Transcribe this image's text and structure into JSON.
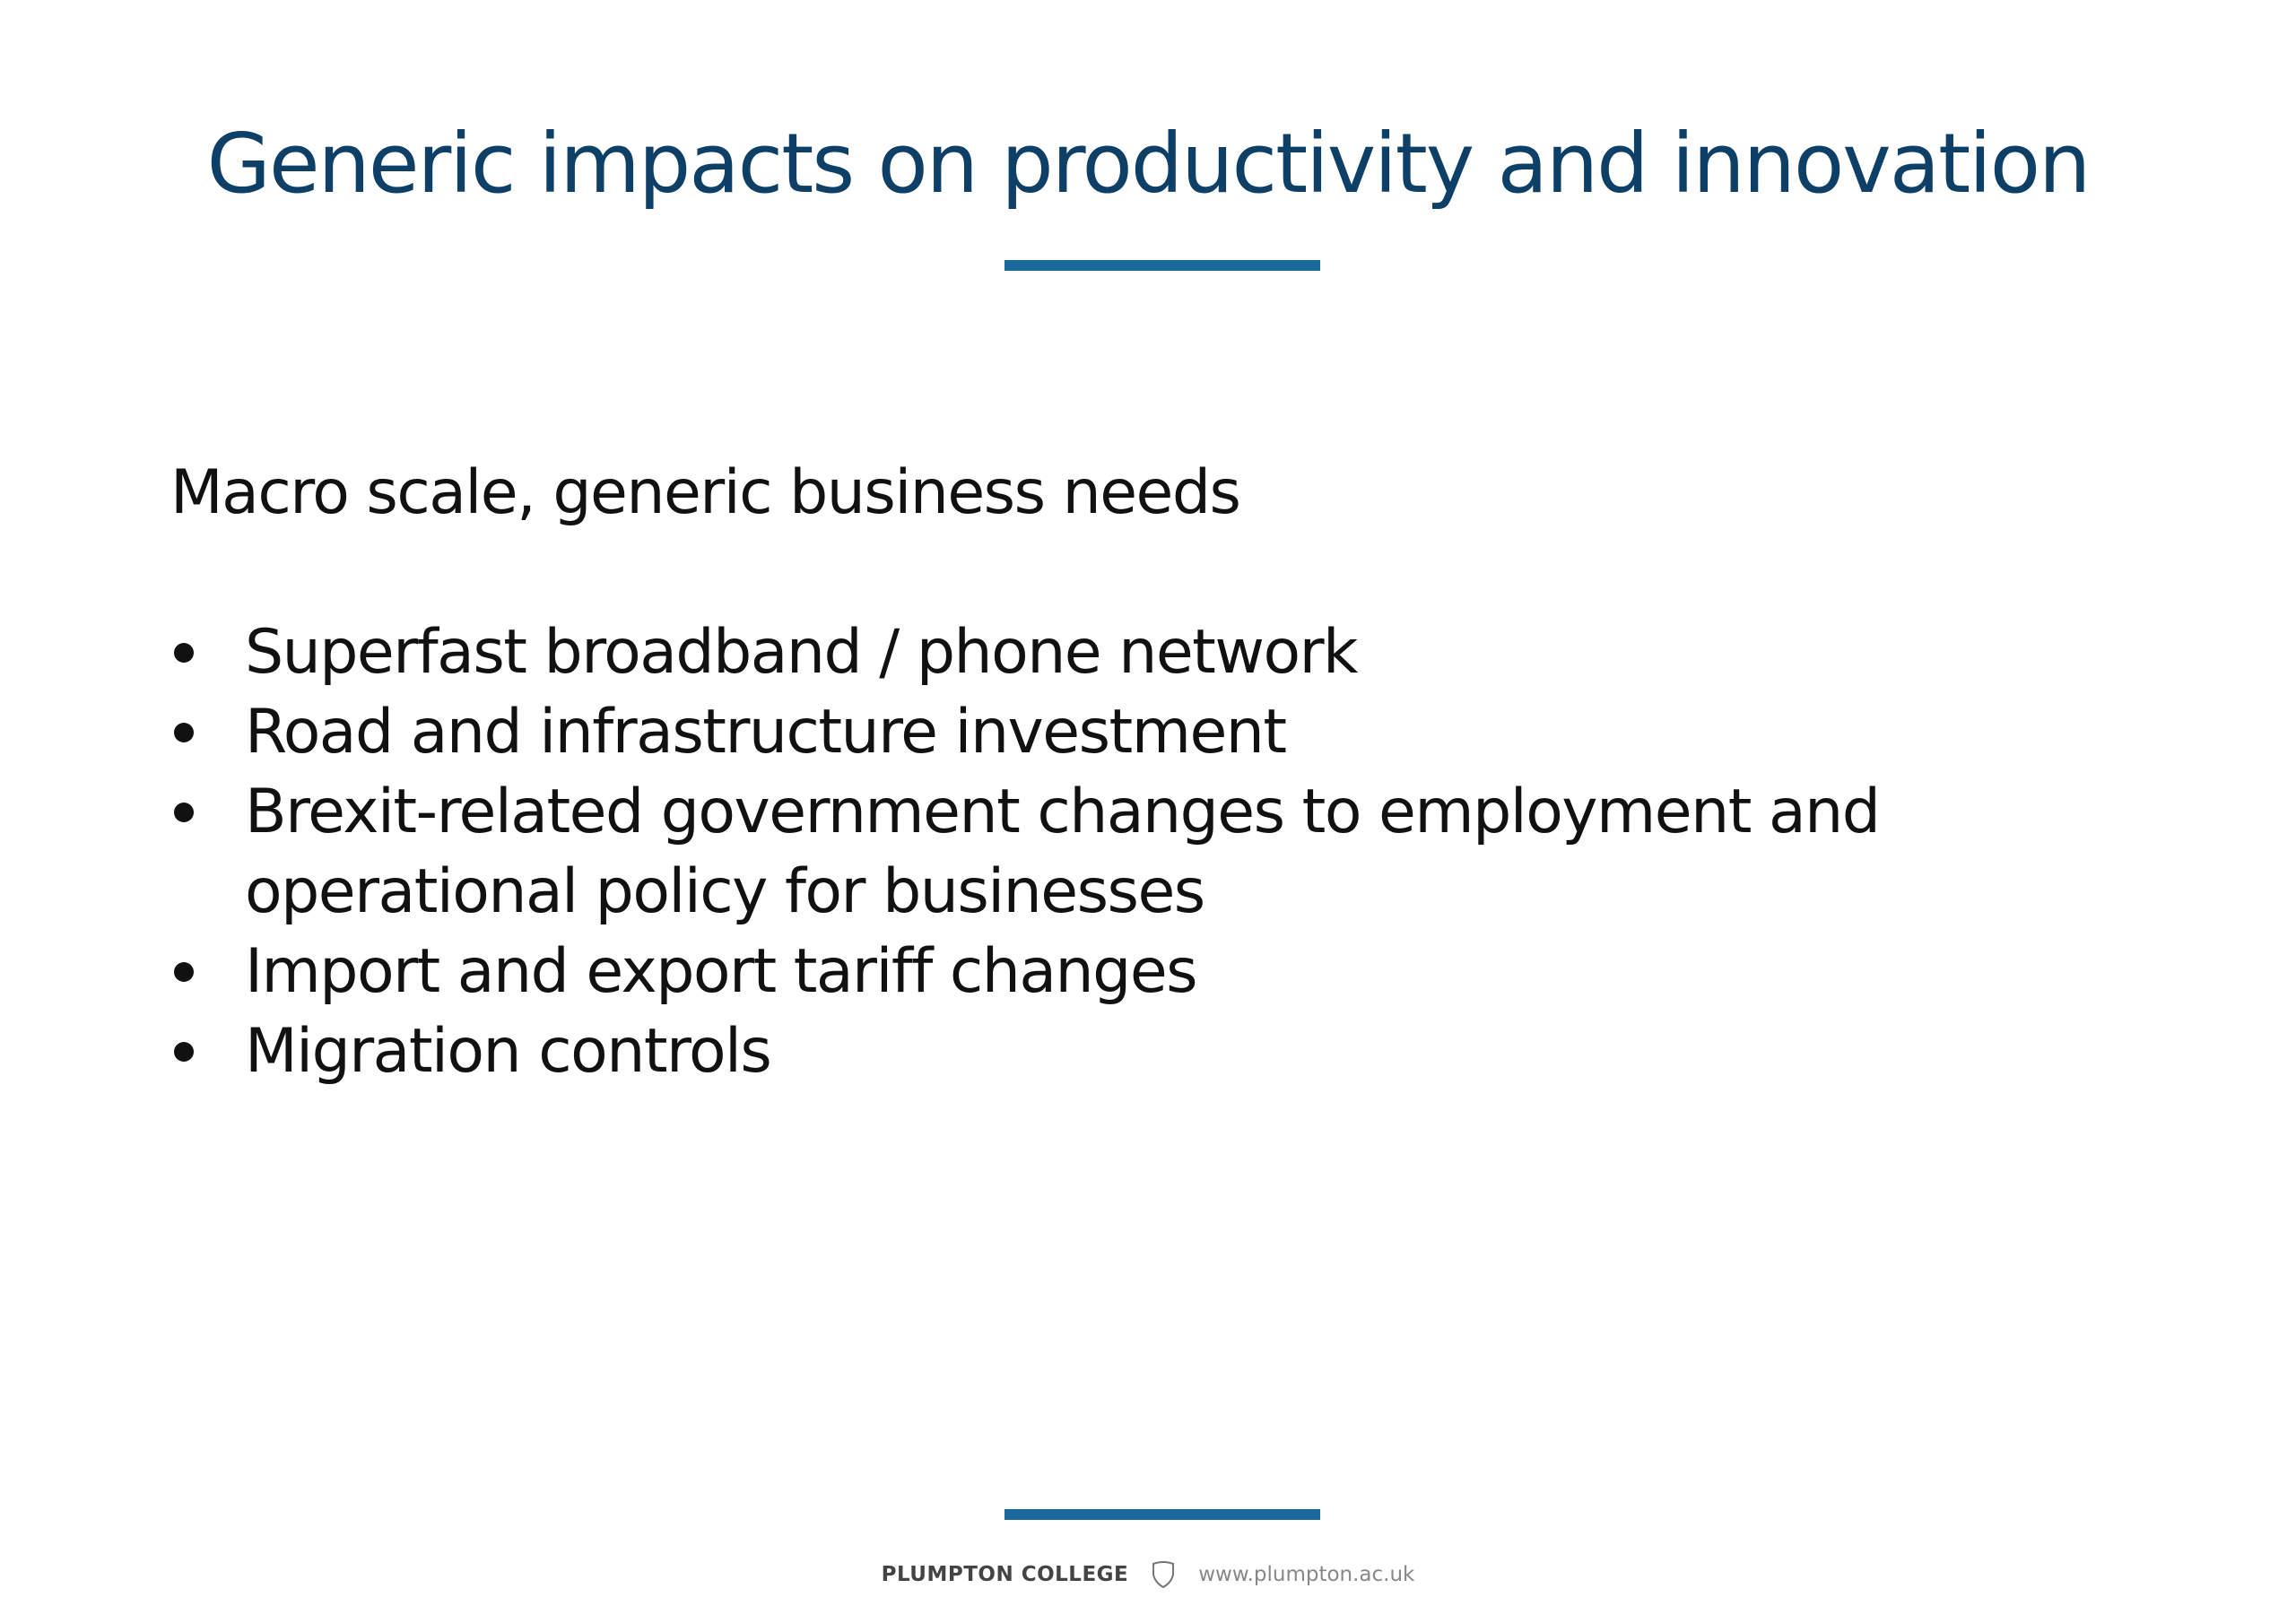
{
  "slide": {
    "title": "Generic impacts on productivity and innovation",
    "intro": "Macro scale, generic business needs",
    "bullets": [
      "Superfast broadband / phone network",
      "Road and infrastructure investment",
      "Brexit-related government changes to employment and operational policy for businesses",
      "Import and export tariff changes",
      "Migration controls"
    ]
  },
  "footer": {
    "college": "PLUMPTON COLLEGE",
    "logo_icon": "shield-icon",
    "url": "www.plumpton.ac.uk"
  },
  "colors": {
    "title": "#0e3f66",
    "accent_bar": "#1a6a9e",
    "text": "#111111"
  }
}
